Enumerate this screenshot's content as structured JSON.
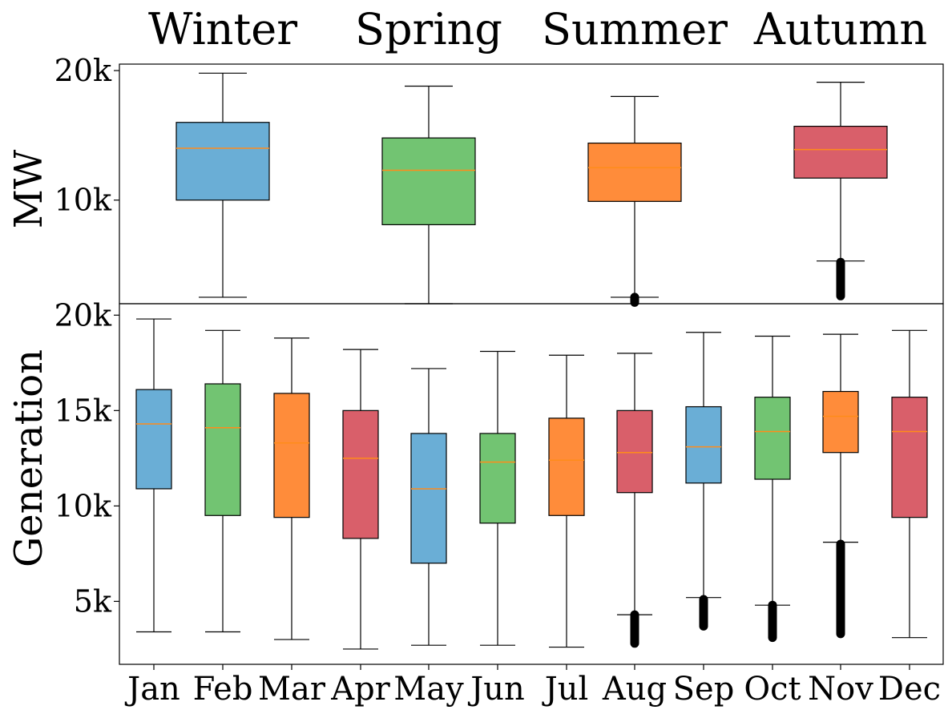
{
  "chart_data": {
    "type": "box",
    "ylabel": "MW\nGeneration",
    "colors": {
      "blue": "#6aaed6",
      "green": "#72c472",
      "orange": "#ff8c3a",
      "red": "#d95f6a",
      "median": "#ff8c1a",
      "outline": "#000000"
    },
    "panels": [
      {
        "id": "seasonal",
        "ylim": [
          2000,
          20500
        ],
        "yticks": [
          {
            "value": 10000,
            "label": "10k"
          },
          {
            "value": 20000,
            "label": "20k"
          }
        ],
        "boxes": [
          {
            "label": "Winter",
            "color": "blue",
            "whisker_low": 2500,
            "q1": 10000,
            "median": 14000,
            "q3": 16000,
            "whisker_high": 19800,
            "outliers": []
          },
          {
            "label": "Spring",
            "color": "green",
            "whisker_low": 2000,
            "q1": 8100,
            "median": 12300,
            "q3": 14800,
            "whisker_high": 18800,
            "outliers": []
          },
          {
            "label": "Summer",
            "color": "orange",
            "whisker_low": 2500,
            "q1": 9900,
            "median": 12500,
            "q3": 14400,
            "whisker_high": 18000,
            "outliers": [
              2100,
              2500
            ]
          },
          {
            "label": "Autumn",
            "color": "red",
            "whisker_low": 5300,
            "q1": 11700,
            "median": 13900,
            "q3": 15700,
            "whisker_high": 19100,
            "outliers": [
              2600,
              5200
            ]
          }
        ]
      },
      {
        "id": "monthly",
        "ylim": [
          1700,
          20600
        ],
        "yticks": [
          {
            "value": 5000,
            "label": "5k"
          },
          {
            "value": 10000,
            "label": "10k"
          },
          {
            "value": 15000,
            "label": "15k"
          },
          {
            "value": 20000,
            "label": "20k"
          }
        ],
        "boxes": [
          {
            "label": "Jan",
            "color": "blue",
            "whisker_low": 3400,
            "q1": 10900,
            "median": 14300,
            "q3": 16100,
            "whisker_high": 19800,
            "outliers": []
          },
          {
            "label": "Feb",
            "color": "green",
            "whisker_low": 3400,
            "q1": 9500,
            "median": 14100,
            "q3": 16400,
            "whisker_high": 19200,
            "outliers": []
          },
          {
            "label": "Mar",
            "color": "orange",
            "whisker_low": 3000,
            "q1": 9400,
            "median": 13300,
            "q3": 15900,
            "whisker_high": 18800,
            "outliers": []
          },
          {
            "label": "Apr",
            "color": "red",
            "whisker_low": 2500,
            "q1": 8300,
            "median": 12500,
            "q3": 15000,
            "whisker_high": 18200,
            "outliers": []
          },
          {
            "label": "May",
            "color": "blue",
            "whisker_low": 2700,
            "q1": 7000,
            "median": 10900,
            "q3": 13800,
            "whisker_high": 17200,
            "outliers": []
          },
          {
            "label": "Jun",
            "color": "green",
            "whisker_low": 2700,
            "q1": 9100,
            "median": 12300,
            "q3": 13800,
            "whisker_high": 18100,
            "outliers": []
          },
          {
            "label": "Jul",
            "color": "orange",
            "whisker_low": 2600,
            "q1": 9500,
            "median": 12400,
            "q3": 14600,
            "whisker_high": 17900,
            "outliers": []
          },
          {
            "label": "Aug",
            "color": "red",
            "whisker_low": 4300,
            "q1": 10700,
            "median": 12800,
            "q3": 15000,
            "whisker_high": 18000,
            "outliers": [
              2800,
              4300
            ]
          },
          {
            "label": "Sep",
            "color": "blue",
            "whisker_low": 5200,
            "q1": 11200,
            "median": 13100,
            "q3": 15200,
            "whisker_high": 19100,
            "outliers": [
              3700,
              5100
            ]
          },
          {
            "label": "Oct",
            "color": "green",
            "whisker_low": 4800,
            "q1": 11400,
            "median": 13900,
            "q3": 15700,
            "whisker_high": 18900,
            "outliers": [
              3100,
              4800
            ]
          },
          {
            "label": "Nov",
            "color": "orange",
            "whisker_low": 8100,
            "q1": 12800,
            "median": 14700,
            "q3": 16000,
            "whisker_high": 19000,
            "outliers": [
              3300,
              8000
            ]
          },
          {
            "label": "Dec",
            "color": "red",
            "whisker_low": 3100,
            "q1": 9400,
            "median": 13900,
            "q3": 15700,
            "whisker_high": 19200,
            "outliers": []
          }
        ]
      }
    ]
  }
}
